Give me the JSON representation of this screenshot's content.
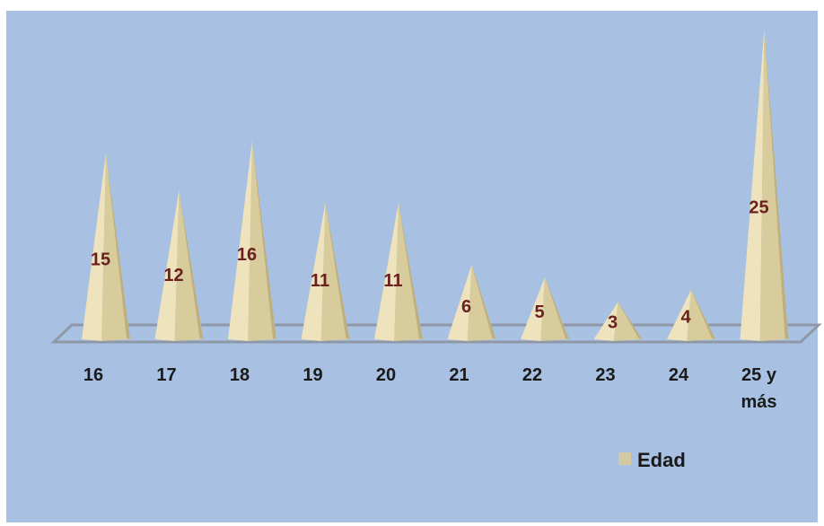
{
  "chart_data": {
    "type": "bar",
    "shape": "pyramid-3d",
    "categories": [
      "16",
      "17",
      "18",
      "19",
      "20",
      "21",
      "22",
      "23",
      "24",
      "25 y más"
    ],
    "series": [
      {
        "name": "Edad",
        "values": [
          15,
          12,
          16,
          11,
          11,
          6,
          5,
          3,
          4,
          25
        ]
      }
    ],
    "data_labels": true,
    "legend": {
      "position": "bottom-right",
      "entries": [
        "Edad"
      ]
    },
    "grid": false
  },
  "colors": {
    "background": "#a8c1e3",
    "frame": "#ffffff",
    "pyramid_light": "#eee3bd",
    "pyramid_mid": "#d8cc9c",
    "pyramid_dark": "#bdb080",
    "floor": "#a9c1e2",
    "floor_edge": "#8f98a6",
    "value_label": "#6b1f1f",
    "tick_label": "#1a1a1a",
    "legend_swatch": "#d3c9a2"
  }
}
